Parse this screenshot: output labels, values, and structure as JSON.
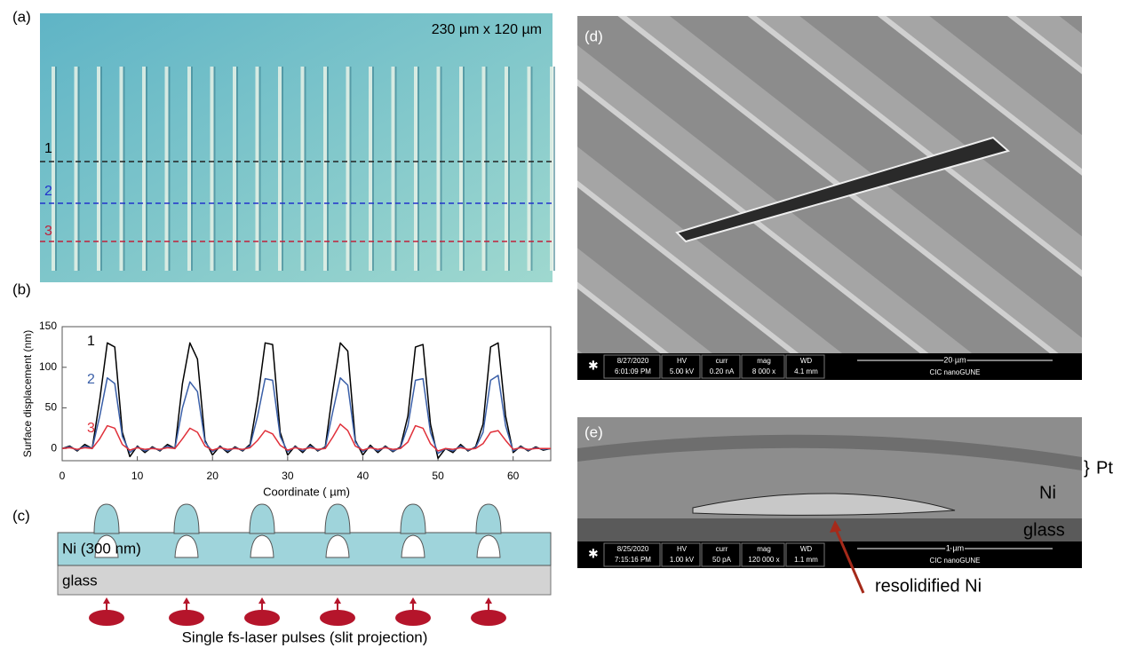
{
  "panel_a": {
    "label": "(a)",
    "size": "230 µm x 120 µm",
    "lines": [
      "1",
      "2",
      "3"
    ]
  },
  "chart_data": {
    "type": "line",
    "label": "(b)",
    "y_label": "Surface displacement (nm)",
    "x_label": "Coordinate ( µm)",
    "x": [
      0,
      1,
      2,
      3,
      4,
      5,
      6,
      7,
      8,
      9,
      10,
      11,
      12,
      13,
      14,
      15,
      16,
      17,
      18,
      19,
      20,
      21,
      22,
      23,
      24,
      25,
      26,
      27,
      28,
      29,
      30,
      31,
      32,
      33,
      34,
      35,
      36,
      37,
      38,
      39,
      40,
      41,
      42,
      43,
      44,
      45,
      46,
      47,
      48,
      49,
      50,
      51,
      52,
      53,
      54,
      55,
      56,
      57,
      58,
      59,
      60,
      61,
      62,
      63,
      64,
      65
    ],
    "series": [
      {
        "name": "1",
        "color": "#000000",
        "values": [
          0,
          3,
          -3,
          5,
          0,
          60,
          130,
          125,
          20,
          -10,
          3,
          -5,
          2,
          -3,
          5,
          0,
          80,
          130,
          110,
          10,
          -8,
          3,
          -5,
          2,
          -3,
          5,
          60,
          130,
          128,
          20,
          -8,
          3,
          -5,
          5,
          -3,
          2,
          70,
          130,
          120,
          10,
          -8,
          4,
          -5,
          3,
          -4,
          2,
          40,
          125,
          128,
          30,
          -12,
          0,
          -5,
          5,
          -3,
          2,
          30,
          125,
          130,
          40,
          -5,
          3,
          -3,
          2,
          -2,
          0
        ]
      },
      {
        "name": "2",
        "color": "#3a5fa8",
        "values": [
          0,
          2,
          -2,
          3,
          0,
          40,
          87,
          80,
          15,
          -5,
          2,
          -3,
          1,
          -2,
          3,
          0,
          50,
          82,
          70,
          8,
          -4,
          2,
          -3,
          1,
          -2,
          3,
          40,
          86,
          84,
          15,
          -4,
          2,
          -3,
          3,
          -2,
          1,
          45,
          87,
          78,
          8,
          -4,
          2,
          -3,
          2,
          -3,
          1,
          28,
          84,
          86,
          20,
          -6,
          0,
          -3,
          3,
          -2,
          1,
          20,
          84,
          90,
          28,
          -3,
          2,
          -2,
          1,
          -1,
          0
        ]
      },
      {
        "name": "3",
        "color": "#e0303a",
        "values": [
          0,
          1,
          -1,
          1,
          0,
          12,
          28,
          25,
          5,
          -2,
          1,
          -1,
          0,
          -1,
          1,
          0,
          12,
          25,
          20,
          3,
          -2,
          1,
          -1,
          0,
          -1,
          1,
          10,
          22,
          18,
          4,
          -2,
          1,
          -1,
          1,
          -1,
          0,
          14,
          30,
          22,
          3,
          -2,
          1,
          -1,
          1,
          -1,
          0,
          8,
          28,
          25,
          6,
          -3,
          0,
          -1,
          1,
          -1,
          0,
          6,
          20,
          22,
          10,
          -1,
          1,
          -1,
          0,
          0,
          0
        ]
      }
    ],
    "xlim": [
      0,
      65
    ],
    "xticks": [
      0,
      10,
      20,
      30,
      40,
      50,
      60
    ],
    "ylim": [
      -15,
      150
    ],
    "yticks": [
      0,
      50,
      100,
      150
    ]
  },
  "panel_c": {
    "label": "(c)",
    "ni": "Ni (300 nm)",
    "glass": "glass",
    "caption": "Single fs-laser pulses (slit projection)"
  },
  "panel_d": {
    "label": "(d)",
    "info": [
      [
        "8/27/2020",
        "6:01:09 PM"
      ],
      [
        "HV",
        "5.00 kV"
      ],
      [
        "curr",
        "0.20 nA"
      ],
      [
        "mag",
        "8 000 x"
      ],
      [
        "WD",
        "4.1 mm"
      ]
    ],
    "scale_bar": "20 µm",
    "institution": "CIC nanoGUNE"
  },
  "panel_e": {
    "label": "(e)",
    "info": [
      [
        "8/25/2020",
        "7:15:16 PM"
      ],
      [
        "HV",
        "1.00 kV"
      ],
      [
        "curr",
        "50 pA"
      ],
      [
        "mag",
        "120 000 x"
      ],
      [
        "WD",
        "1.1 mm"
      ]
    ],
    "scale_bar": "1 µm",
    "institution": "CIC nanoGUNE",
    "pt": "Pt",
    "ni": "Ni",
    "glass": "glass",
    "arrow_label": "resolidified Ni"
  }
}
